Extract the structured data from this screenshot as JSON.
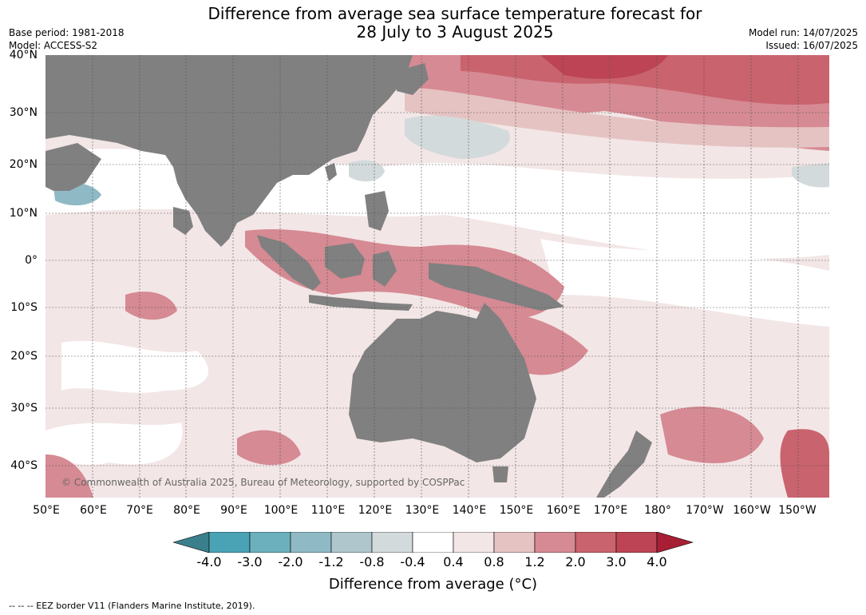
{
  "title_line1": "Difference from average sea surface temperature forecast for",
  "title_line2": "28 July to 3 August 2025",
  "base_period": "Base period: 1981-2018",
  "model": "Model: ACCESS-S2",
  "model_run": "Model run: 14/07/2025",
  "issued": "Issued: 16/07/2025",
  "copyright": "© Commonwealth of Australia 2025, Bureau of Meteorology, supported by COSPPac",
  "lat_labels": [
    "40°N",
    "30°N",
    "20°N",
    "10°N",
    "0°",
    "10°S",
    "20°S",
    "30°S",
    "40°S"
  ],
  "lon_labels": [
    "50°E",
    "60°E",
    "70°E",
    "80°E",
    "90°E",
    "100°E",
    "110°E",
    "120°E",
    "130°E",
    "140°E",
    "150°E",
    "160°E",
    "170°E",
    "180°",
    "170°W",
    "160°W",
    "150°W"
  ],
  "colorbar": {
    "ticks": [
      "-4.0",
      "-3.0",
      "-2.0",
      "-1.2",
      "-0.8",
      "-0.4",
      "0.4",
      "0.8",
      "1.2",
      "2.0",
      "3.0",
      "4.0"
    ],
    "colors": [
      "#3a7f8c",
      "#4aa3b5",
      "#6cb0bd",
      "#8fbac5",
      "#aec6cc",
      "#d3dadc",
      "#ffffff",
      "#f3e6e6",
      "#e6c3c3",
      "#d68a93",
      "#c9636e",
      "#bd4455",
      "#a81e35"
    ],
    "label": "Difference from average (°C)"
  },
  "footer": "--  --  -- EEZ border V11 (Flanders Marine Institute, 2019).",
  "land_color": "#808080"
}
